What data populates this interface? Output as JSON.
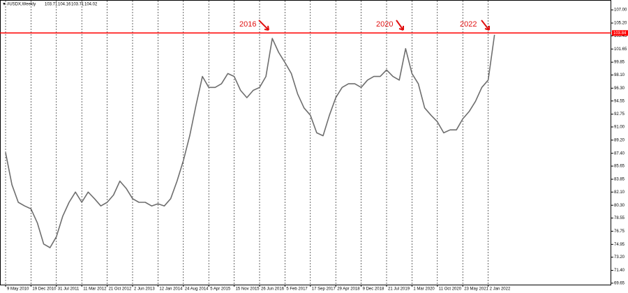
{
  "chart_data": {
    "type": "line",
    "header": {
      "symbol": "#USDX,Weekly",
      "ohlc": [
        103.71,
        104.16,
        103.71,
        104.02
      ]
    },
    "categories": [
      "9 May 2010",
      null,
      null,
      null,
      "19 Dec 2010",
      null,
      null,
      null,
      "31 Jul 2011",
      null,
      null,
      null,
      "11 Mar 2012",
      null,
      null,
      null,
      "21 Oct 2012",
      null,
      null,
      null,
      "2 Jun 2013",
      null,
      null,
      null,
      "12 Jan 2014",
      null,
      null,
      null,
      "24 Aug 2014",
      null,
      null,
      null,
      "5 Apr 2015",
      null,
      null,
      null,
      "15 Nov 2015",
      null,
      null,
      null,
      "26 Jun 2016",
      null,
      null,
      null,
      "5 Feb 2017",
      null,
      null,
      null,
      "17 Sep 2017",
      null,
      null,
      null,
      "29 Apr 2018",
      null,
      null,
      null,
      "9 Dec 2018",
      null,
      null,
      null,
      "21 Jul 2019",
      null,
      null,
      null,
      "1 Mar 2020",
      null,
      null,
      null,
      "11 Oct 2020",
      null,
      null,
      null,
      "23 May 2021",
      null,
      null,
      null,
      "2 Jan 2022",
      null
    ],
    "series": [
      {
        "name": "#USDX,Weekly",
        "color": "#6e6e6e",
        "values": [
          87.5,
          83.1,
          80.7,
          80.2,
          79.8,
          77.9,
          75.0,
          74.5,
          76.0,
          78.8,
          80.7,
          82.1,
          80.7,
          82.1,
          81.2,
          80.2,
          80.7,
          81.7,
          83.6,
          82.6,
          81.2,
          80.7,
          80.7,
          80.2,
          80.5,
          80.2,
          81.2,
          83.6,
          86.4,
          89.8,
          94.0,
          97.9,
          96.4,
          96.4,
          96.9,
          98.3,
          97.9,
          96.0,
          95.0,
          96.0,
          96.4,
          97.9,
          103.1,
          101.2,
          99.8,
          98.3,
          95.5,
          93.6,
          92.6,
          90.2,
          89.8,
          92.6,
          95.0,
          96.4,
          96.9,
          96.9,
          96.4,
          97.4,
          97.9,
          97.9,
          98.8,
          97.9,
          97.4,
          101.7,
          98.3,
          96.9,
          93.6,
          92.6,
          91.7,
          90.2,
          90.6,
          90.6,
          92.1,
          93.1,
          94.5,
          96.4,
          97.4,
          103.6
        ]
      }
    ],
    "ylim": [
      69.45,
      108.35
    ],
    "yticks": [
      {
        "value": 107,
        "label": "107.00"
      },
      {
        "value": 105.2,
        "label": "105.20"
      },
      {
        "value": 103.45,
        "label": "103.45"
      },
      {
        "value": 101.65,
        "label": "101.65"
      },
      {
        "value": 99.85,
        "label": "99.85"
      },
      {
        "value": 98.1,
        "label": "98.10"
      },
      {
        "value": 96.3,
        "label": "96.30"
      },
      {
        "value": 94.55,
        "label": "94.55"
      },
      {
        "value": 92.75,
        "label": "92.75"
      },
      {
        "value": 91,
        "label": "91.00"
      },
      {
        "value": 89.2,
        "label": "89.20"
      },
      {
        "value": 87.4,
        "label": "87.40"
      },
      {
        "value": 85.65,
        "label": "85.65"
      },
      {
        "value": 83.85,
        "label": "83.85"
      },
      {
        "value": 82.1,
        "label": "82.10"
      },
      {
        "value": 80.3,
        "label": "80.30"
      },
      {
        "value": 78.55,
        "label": "78.55"
      },
      {
        "value": 76.75,
        "label": "76.75"
      },
      {
        "value": 74.95,
        "label": "74.95"
      },
      {
        "value": 73.2,
        "label": "73.20"
      },
      {
        "value": 71.4,
        "label": "71.40"
      },
      {
        "value": 69.65,
        "label": "69.65"
      }
    ],
    "hline": {
      "value": 103.84,
      "color": "#ff0000"
    },
    "annotations": [
      "2016",
      "2020",
      "2022"
    ],
    "grid": true
  }
}
